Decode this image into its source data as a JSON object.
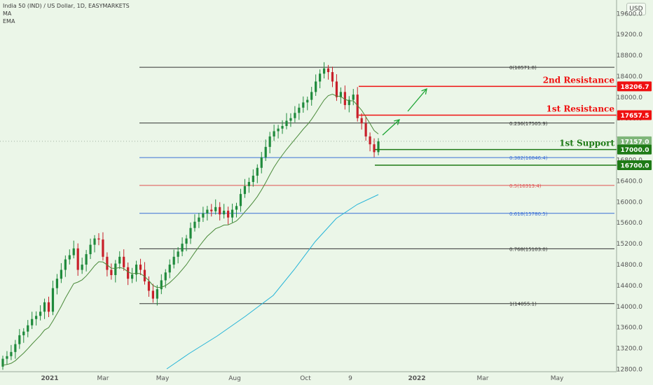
{
  "header": {
    "title": "India 50 (IND) / US Dollar, 1D, EASYMARKETS",
    "ind1": "MA",
    "ind2": "EMA"
  },
  "currency_label": "USD",
  "colors": {
    "bg": "#ebf6e8",
    "up": "#1f8a3c",
    "down": "#c8202a",
    "resistance": "#ef1010",
    "support": "#1e7a16",
    "fib_black": "#333333",
    "fib_blue": "#3b6fd6",
    "fib_red": "#e05050",
    "ma200": "#24b4d8",
    "ema": "#4a8a3a",
    "arrow": "#1ea535"
  },
  "chart_data": {
    "type": "candlestick",
    "title": "India 50 (IND) / US Dollar, 1D, EASYMARKETS",
    "x_ticks": [
      "2021",
      "Mar",
      "May",
      "Aug",
      "Oct",
      "9",
      "2022",
      "Mar",
      "May"
    ],
    "y_ticks": [
      12800,
      13200,
      13600,
      14000,
      14400,
      14800,
      15200,
      15600,
      16000,
      16400,
      16800,
      17200,
      17600,
      18000,
      18400,
      18800,
      19200,
      19600
    ],
    "y_range": [
      12650,
      19700
    ],
    "fibonacci": [
      {
        "label": "0(18571.8)",
        "value": 18571.8
      },
      {
        "label": "0.236(17505.9)",
        "value": 17505.9
      },
      {
        "label": "0.382(16846.4)",
        "value": 16846.4
      },
      {
        "label": "0.5(16313.4)",
        "value": 16313.4
      },
      {
        "label": "0.618(15780.5)",
        "value": 15780.5
      },
      {
        "label": "0.768(15103.0)",
        "value": 15103.0
      },
      {
        "label": "1(14055.1)",
        "value": 14055.1
      }
    ],
    "levels": [
      {
        "name": "2nd Resistance",
        "value": 18206.7,
        "kind": "resistance"
      },
      {
        "name": "1st Resistance",
        "value": 17657.5,
        "kind": "resistance"
      },
      {
        "name": "1st Support",
        "value": 17000.0,
        "kind": "support"
      },
      {
        "name": "",
        "value": 16700.0,
        "kind": "support"
      }
    ],
    "last_price": 17157.0,
    "price_labels": [
      "18206.7",
      "17657.5",
      "17157.0",
      "17000.0",
      "16700.0"
    ],
    "series": [
      {
        "name": "Close",
        "values": [
          13000,
          13050,
          13130,
          13280,
          13450,
          13520,
          13640,
          13760,
          13820,
          13900,
          14080,
          13900,
          14350,
          14530,
          14700,
          14900,
          14980,
          15110,
          14700,
          14800,
          15000,
          15180,
          15300,
          15280,
          14950,
          14700,
          14600,
          14820,
          14950,
          14750,
          14530,
          14610,
          14800,
          14700,
          14480,
          14300,
          14150,
          14330,
          14500,
          14650,
          14800,
          14950,
          15050,
          15200,
          15300,
          15500,
          15620,
          15700,
          15780,
          15850,
          15820,
          15900,
          15760,
          15830,
          15700,
          15850,
          15920,
          16150,
          16300,
          16380,
          16500,
          16650,
          16850,
          17050,
          17250,
          17350,
          17400,
          17450,
          17550,
          17600,
          17700,
          17800,
          17900,
          17950,
          18100,
          18300,
          18450,
          18550,
          18480,
          18300,
          18000,
          18100,
          17850,
          17950,
          18050,
          17600,
          17500,
          17250,
          17100,
          16950,
          17157
        ]
      }
    ]
  }
}
